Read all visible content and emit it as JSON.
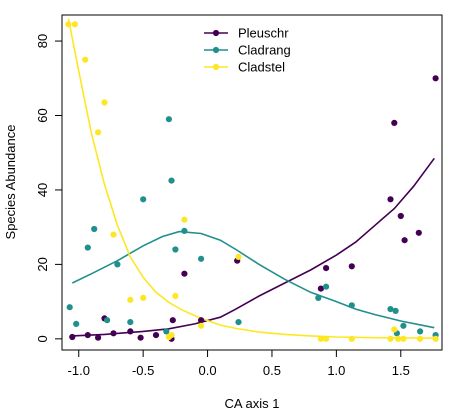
{
  "chart_data": {
    "type": "scatter",
    "title": "",
    "xlabel": "CA axis 1",
    "ylabel": "Species Abundance",
    "xlim": [
      -1.13,
      1.82
    ],
    "ylim": [
      -3,
      87
    ],
    "xticks": [
      -1.0,
      -0.5,
      0.0,
      0.5,
      1.0,
      1.5
    ],
    "xtick_labels": [
      "-1.0",
      "-0.5",
      "0.0",
      "0.5",
      "1.0",
      "1.5"
    ],
    "yticks": [
      0,
      20,
      40,
      60,
      80
    ],
    "ytick_labels": [
      "0",
      "20",
      "40",
      "60",
      "80"
    ],
    "grid": false,
    "legend_position": "top-center",
    "series": [
      {
        "name": "Pleuschr",
        "color": "#440154",
        "points": [
          [
            -1.05,
            0.5
          ],
          [
            -0.93,
            1.0
          ],
          [
            -0.85,
            0.3
          ],
          [
            -0.8,
            5.5
          ],
          [
            -0.73,
            1.5
          ],
          [
            -0.6,
            2.0
          ],
          [
            -0.52,
            0.3
          ],
          [
            -0.4,
            1.0
          ],
          [
            -0.28,
            0.0
          ],
          [
            -0.27,
            5.0
          ],
          [
            -0.18,
            17.5
          ],
          [
            -0.05,
            5.0
          ],
          [
            0.23,
            21.0
          ],
          [
            0.88,
            13.5
          ],
          [
            0.92,
            19.0
          ],
          [
            1.12,
            19.5
          ],
          [
            1.42,
            37.5
          ],
          [
            1.45,
            58.0
          ],
          [
            1.5,
            33.0
          ],
          [
            1.53,
            26.5
          ],
          [
            1.64,
            28.5
          ],
          [
            1.77,
            70.0
          ]
        ],
        "curve": [
          [
            -1.05,
            0.8
          ],
          [
            -0.8,
            1.2
          ],
          [
            -0.5,
            2.0
          ],
          [
            -0.3,
            2.7
          ],
          [
            -0.1,
            4.0
          ],
          [
            0.1,
            5.8
          ],
          [
            0.22,
            8.0
          ],
          [
            0.4,
            11.5
          ],
          [
            0.6,
            15.0
          ],
          [
            0.8,
            18.5
          ],
          [
            1.0,
            22.5
          ],
          [
            1.15,
            26.0
          ],
          [
            1.3,
            30.5
          ],
          [
            1.45,
            35.0
          ],
          [
            1.6,
            41.0
          ],
          [
            1.76,
            48.5
          ]
        ]
      },
      {
        "name": "Cladrang",
        "color": "#21908C",
        "points": [
          [
            -1.07,
            8.5
          ],
          [
            -1.02,
            4.0
          ],
          [
            -0.93,
            24.5
          ],
          [
            -0.88,
            29.5
          ],
          [
            -0.78,
            5.0
          ],
          [
            -0.7,
            20.0
          ],
          [
            -0.6,
            4.5
          ],
          [
            -0.5,
            37.5
          ],
          [
            -0.32,
            2.0
          ],
          [
            -0.3,
            59.0
          ],
          [
            -0.28,
            42.5
          ],
          [
            -0.25,
            24.0
          ],
          [
            -0.18,
            29.0
          ],
          [
            -0.05,
            21.5
          ],
          [
            0.24,
            4.5
          ],
          [
            0.86,
            11.0
          ],
          [
            0.92,
            14.0
          ],
          [
            1.12,
            9.0
          ],
          [
            1.42,
            8.0
          ],
          [
            1.46,
            7.5
          ],
          [
            1.47,
            1.5
          ],
          [
            1.52,
            3.5
          ],
          [
            1.65,
            2.0
          ],
          [
            1.77,
            1.0
          ]
        ],
        "curve": [
          [
            -1.05,
            15.0
          ],
          [
            -0.9,
            17.5
          ],
          [
            -0.7,
            21.0
          ],
          [
            -0.5,
            25.0
          ],
          [
            -0.35,
            27.5
          ],
          [
            -0.22,
            28.8
          ],
          [
            -0.05,
            28.3
          ],
          [
            0.1,
            26.5
          ],
          [
            0.22,
            24.0
          ],
          [
            0.4,
            20.0
          ],
          [
            0.6,
            16.0
          ],
          [
            0.8,
            12.5
          ],
          [
            1.0,
            10.0
          ],
          [
            1.15,
            8.0
          ],
          [
            1.3,
            6.5
          ],
          [
            1.5,
            4.8
          ],
          [
            1.76,
            3.0
          ]
        ]
      },
      {
        "name": "Cladstel",
        "color": "#FDE725",
        "points": [
          [
            -1.08,
            84.5
          ],
          [
            -1.03,
            84.5
          ],
          [
            -0.95,
            75.0
          ],
          [
            -0.85,
            55.5
          ],
          [
            -0.8,
            63.5
          ],
          [
            -0.73,
            28.0
          ],
          [
            -0.6,
            10.5
          ],
          [
            -0.5,
            11.0
          ],
          [
            -0.3,
            0.5
          ],
          [
            -0.28,
            1.0
          ],
          [
            -0.25,
            11.5
          ],
          [
            -0.18,
            32.0
          ],
          [
            -0.05,
            3.5
          ],
          [
            0.24,
            22.0
          ],
          [
            0.88,
            0.0
          ],
          [
            0.92,
            0.0
          ],
          [
            1.12,
            0.0
          ],
          [
            1.42,
            0.0
          ],
          [
            1.45,
            2.5
          ],
          [
            1.48,
            0.0
          ],
          [
            1.52,
            0.0
          ],
          [
            1.65,
            0.0
          ],
          [
            1.77,
            0.0
          ]
        ],
        "curve": [
          [
            -1.08,
            86.0
          ],
          [
            -1.0,
            72.0
          ],
          [
            -0.9,
            55.0
          ],
          [
            -0.8,
            41.5
          ],
          [
            -0.7,
            30.5
          ],
          [
            -0.6,
            22.0
          ],
          [
            -0.5,
            16.5
          ],
          [
            -0.4,
            12.5
          ],
          [
            -0.3,
            9.8
          ],
          [
            -0.2,
            7.8
          ],
          [
            -0.05,
            5.5
          ],
          [
            0.1,
            3.7
          ],
          [
            0.22,
            2.8
          ],
          [
            0.4,
            1.8
          ],
          [
            0.6,
            1.2
          ],
          [
            0.8,
            0.8
          ],
          [
            1.0,
            0.5
          ],
          [
            1.3,
            0.3
          ],
          [
            1.76,
            0.2
          ]
        ]
      }
    ]
  }
}
